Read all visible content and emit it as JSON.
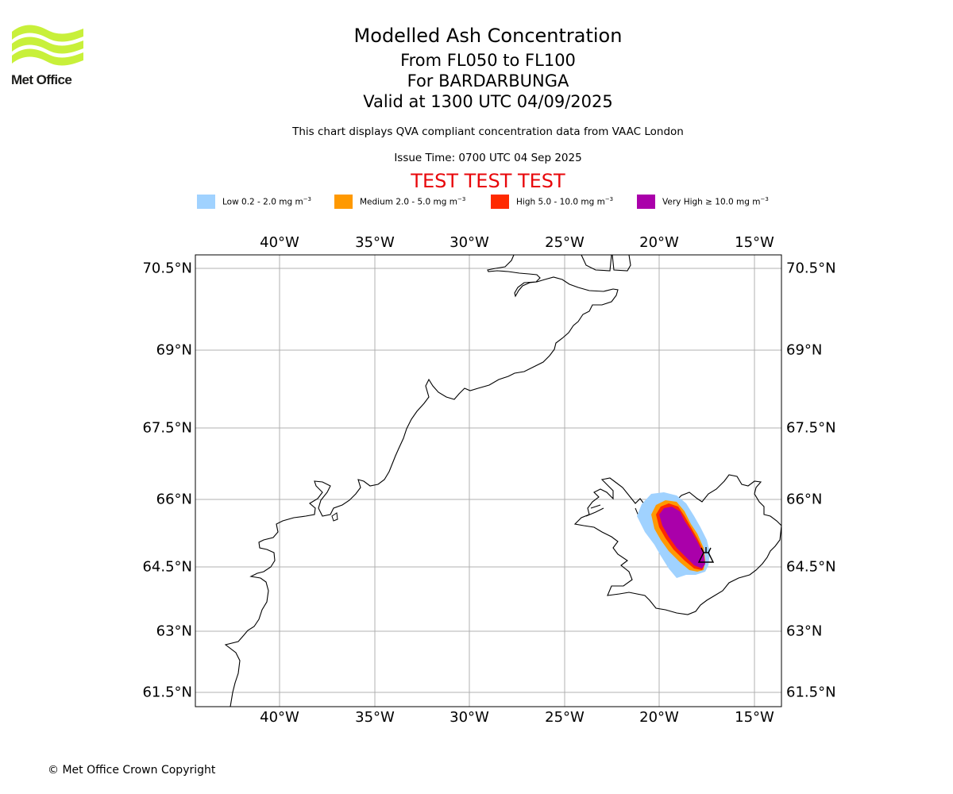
{
  "header": {
    "org": "Met Office",
    "title": "Modelled Ash Concentration",
    "line1": "From FL050 to FL100",
    "line2": "For BARDARBUNGA",
    "line3": "Valid at 1300 UTC 04/09/2025",
    "note": "This chart displays QVA compliant concentration data from VAAC London",
    "issue": "Issue Time: 0700 UTC 04 Sep 2025",
    "test_banner": "TEST TEST TEST"
  },
  "legend": [
    {
      "text": "Low 0.2 - 2.0 mg m",
      "unit_exp": "−3",
      "color": "#a0d2ff"
    },
    {
      "text": "Medium 2.0 - 5.0 mg m",
      "unit_exp": "−3",
      "color": "#ff9900"
    },
    {
      "text": "High 5.0 - 10.0 mg m",
      "unit_exp": "−3",
      "color": "#ff2a00"
    },
    {
      "text": "Very High ≥ 10.0 mg m",
      "unit_exp": "−3",
      "color": "#aa00aa"
    }
  ],
  "map": {
    "lon_ticks": [
      "40°W",
      "35°W",
      "30°W",
      "25°W",
      "20°W",
      "15°W"
    ],
    "lat_ticks": [
      "70.5°N",
      "69°N",
      "67.5°N",
      "66°N",
      "64.5°N",
      "63°N",
      "61.5°N"
    ],
    "gridline_color": "#b0b0b0",
    "coastline_color": "#000000",
    "volcano_symbol": "volcano-icon"
  },
  "footer": {
    "copyright": "© Met Office Crown Copyright"
  }
}
